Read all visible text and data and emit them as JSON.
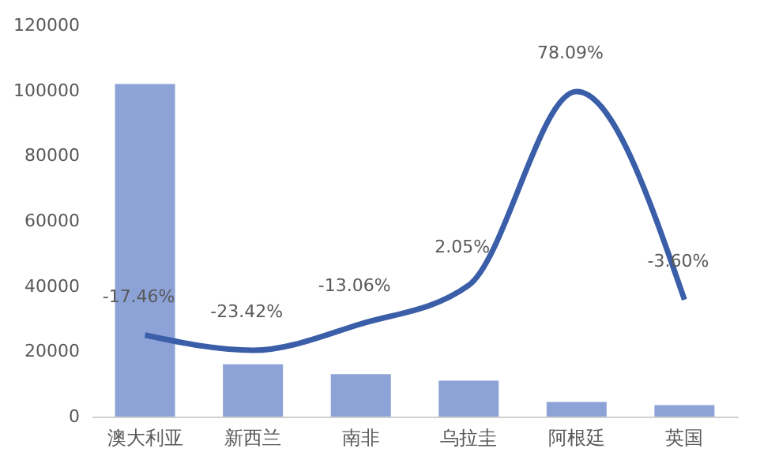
{
  "chart_data": {
    "type": "bar",
    "categories": [
      "澳大利亚",
      "新西兰",
      "南非",
      "乌拉圭",
      "阿根廷",
      "英国"
    ],
    "series": [
      {
        "color": "#8da2d6",
        "values": [
          102000,
          16000,
          13000,
          11000,
          4500,
          3500
        ]
      },
      {
        "type": "line",
        "axis": "y2",
        "color": "#3a5ea8",
        "values": [
          -17.46,
          -23.42,
          -13.06,
          2.05,
          78.09,
          -3.6
        ],
        "value_labels": [
          "-17.46%",
          "-23.42%",
          "-13.06%",
          "2.05%",
          "78.09%",
          "-3.60%"
        ]
      }
    ],
    "ylim": [
      0,
      120000
    ],
    "yticks": [
      0,
      20000,
      40000,
      60000,
      80000,
      100000,
      120000
    ],
    "grid": false,
    "marker": "none",
    "line_style": "solid"
  }
}
